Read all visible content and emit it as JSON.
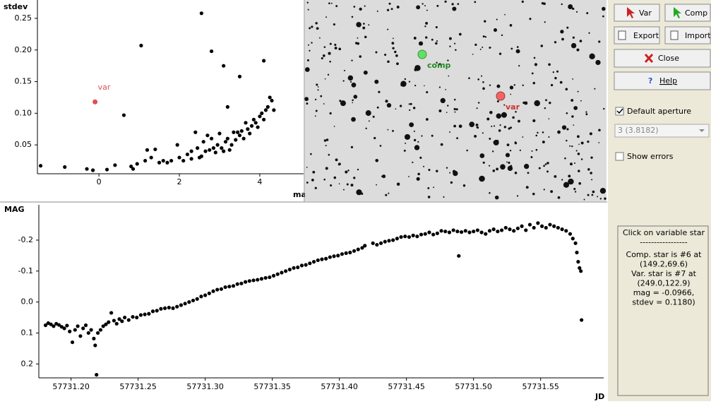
{
  "chart_data": [
    {
      "type": "scatter",
      "y_label": "stdev",
      "x_label": "mag",
      "xlim": [
        -1.53,
        5.09
      ],
      "ylim": [
        0.0044,
        0.279
      ],
      "xticks": [
        0,
        2,
        4
      ],
      "yticks": [
        0.05,
        {
          "value": 0.1,
          "label": "0.10"
        },
        0.15,
        {
          "value": 0.2,
          "label": "0.20"
        },
        0.25
      ],
      "series": [
        {
          "color": "#000000",
          "x": [
            2.55,
            1.05,
            2.8,
            3.1,
            3.5,
            4.1,
            0.62,
            3.2,
            -1.45,
            -0.85,
            -0.3,
            -0.15,
            0.2,
            0.4,
            0.8,
            0.85,
            0.95,
            1.15,
            1.2,
            1.4,
            1.3,
            1.5,
            1.6,
            1.7,
            1.8,
            1.95,
            2.0,
            2.1,
            2.2,
            2.3,
            2.3,
            2.4,
            2.45,
            2.5,
            2.6,
            2.65,
            2.7,
            2.75,
            2.8,
            2.85,
            2.9,
            2.95,
            3.0,
            3.05,
            3.1,
            3.15,
            3.2,
            3.3,
            3.35,
            3.4,
            3.5,
            3.55,
            3.6,
            3.7,
            3.75,
            3.8,
            3.85,
            3.9,
            4.0,
            4.05,
            4.1,
            4.15,
            4.2,
            4.25,
            4.3,
            4.35,
            3.95,
            3.65,
            3.45,
            3.25,
            2.55
          ],
          "values": [
            0.258,
            0.207,
            0.198,
            0.175,
            0.158,
            0.183,
            0.097,
            0.11,
            0.017,
            0.015,
            0.012,
            0.01,
            0.011,
            0.018,
            0.016,
            0.012,
            0.02,
            0.025,
            0.042,
            0.043,
            0.03,
            0.022,
            0.025,
            0.022,
            0.025,
            0.05,
            0.03,
            0.025,
            0.035,
            0.04,
            0.028,
            0.07,
            0.045,
            0.03,
            0.055,
            0.04,
            0.065,
            0.042,
            0.06,
            0.045,
            0.038,
            0.05,
            0.068,
            0.045,
            0.04,
            0.055,
            0.06,
            0.05,
            0.07,
            0.058,
            0.065,
            0.072,
            0.06,
            0.075,
            0.068,
            0.08,
            0.09,
            0.085,
            0.095,
            0.1,
            0.09,
            0.105,
            0.11,
            0.125,
            0.12,
            0.105,
            0.078,
            0.085,
            0.07,
            0.042,
            0.032
          ]
        },
        {
          "name": "var",
          "color": "#e05050",
          "x": [
            -0.0966
          ],
          "values": [
            0.118
          ]
        }
      ]
    },
    {
      "type": "scatter",
      "y_label": "MAG",
      "x_label": "JD",
      "xlim": [
        57731.176,
        57731.597
      ],
      "ylim": [
        0.245,
        -0.314
      ],
      "xticks": [
        {
          "value": 57731.2,
          "label": "57731.20"
        },
        {
          "value": 57731.25,
          "label": "57731.25"
        },
        {
          "value": 57731.3,
          "label": "57731.30"
        },
        {
          "value": 57731.35,
          "label": "57731.35"
        },
        {
          "value": 57731.4,
          "label": "57731.40"
        },
        {
          "value": 57731.45,
          "label": "57731.45"
        },
        {
          "value": 57731.5,
          "label": "57731.50"
        },
        {
          "value": 57731.55,
          "label": "57731.55"
        }
      ],
      "yticks": [
        -0.2,
        -0.1,
        {
          "value": 0,
          "label": "0.0"
        },
        0.1,
        0.2
      ],
      "series": [
        {
          "color": "#000000",
          "x": [
            57731.181,
            57731.183,
            57731.185,
            57731.187,
            57731.189,
            57731.191,
            57731.193,
            57731.195,
            57731.197,
            57731.199,
            57731.201,
            57731.203,
            57731.205,
            57731.207,
            57731.209,
            57731.211,
            57731.213,
            57731.215,
            57731.217,
            57731.218,
            57731.219,
            57731.22,
            57731.222,
            57731.224,
            57731.226,
            57731.228,
            57731.23,
            57731.232,
            57731.234,
            57731.236,
            57731.238,
            57731.24,
            57731.243,
            57731.246,
            57731.249,
            57731.252,
            57731.255,
            57731.258,
            57731.261,
            57731.264,
            57731.267,
            57731.27,
            57731.273,
            57731.276,
            57731.279,
            57731.282,
            57731.285,
            57731.288,
            57731.291,
            57731.294,
            57731.297,
            57731.3,
            57731.303,
            57731.306,
            57731.309,
            57731.312,
            57731.315,
            57731.318,
            57731.321,
            57731.324,
            57731.327,
            57731.33,
            57731.333,
            57731.336,
            57731.339,
            57731.342,
            57731.345,
            57731.348,
            57731.351,
            57731.354,
            57731.357,
            57731.36,
            57731.363,
            57731.366,
            57731.369,
            57731.372,
            57731.375,
            57731.378,
            57731.381,
            57731.384,
            57731.387,
            57731.39,
            57731.393,
            57731.396,
            57731.399,
            57731.402,
            57731.405,
            57731.408,
            57731.411,
            57731.414,
            57731.417,
            57731.419,
            57731.425,
            57731.428,
            57731.431,
            57731.434,
            57731.437,
            57731.44,
            57731.443,
            57731.446,
            57731.449,
            57731.452,
            57731.455,
            57731.458,
            57731.461,
            57731.464,
            57731.467,
            57731.47,
            57731.473,
            57731.476,
            57731.479,
            57731.482,
            57731.485,
            57731.488,
            57731.489,
            57731.491,
            57731.494,
            57731.497,
            57731.5,
            57731.503,
            57731.506,
            57731.509,
            57731.512,
            57731.515,
            57731.518,
            57731.521,
            57731.524,
            57731.527,
            57731.53,
            57731.533,
            57731.536,
            57731.539,
            57731.542,
            57731.545,
            57731.548,
            57731.551,
            57731.554,
            57731.557,
            57731.56,
            57731.563,
            57731.566,
            57731.569,
            57731.572,
            57731.574,
            57731.576,
            57731.577,
            57731.578,
            57731.579,
            57731.58,
            57731.5805
          ],
          "values": [
            0.075,
            0.068,
            0.072,
            0.078,
            0.07,
            0.074,
            0.08,
            0.085,
            0.076,
            0.095,
            0.13,
            0.09,
            0.078,
            0.11,
            0.085,
            0.075,
            0.1,
            0.09,
            0.118,
            0.14,
            0.235,
            0.1,
            0.09,
            0.078,
            0.072,
            0.065,
            0.035,
            0.06,
            0.07,
            0.055,
            0.062,
            0.05,
            0.058,
            0.048,
            0.05,
            0.042,
            0.04,
            0.038,
            0.03,
            0.028,
            0.022,
            0.02,
            0.018,
            0.02,
            0.015,
            0.01,
            0.005,
            0,
            -0.005,
            -0.01,
            -0.018,
            -0.022,
            -0.028,
            -0.035,
            -0.04,
            -0.042,
            -0.048,
            -0.05,
            -0.052,
            -0.058,
            -0.06,
            -0.065,
            -0.068,
            -0.07,
            -0.072,
            -0.075,
            -0.078,
            -0.08,
            -0.085,
            -0.09,
            -0.095,
            -0.1,
            -0.105,
            -0.11,
            -0.112,
            -0.118,
            -0.12,
            -0.125,
            -0.13,
            -0.135,
            -0.138,
            -0.14,
            -0.145,
            -0.148,
            -0.15,
            -0.155,
            -0.158,
            -0.16,
            -0.165,
            -0.17,
            -0.175,
            -0.182,
            -0.19,
            -0.185,
            -0.19,
            -0.195,
            -0.198,
            -0.2,
            -0.205,
            -0.21,
            -0.212,
            -0.21,
            -0.215,
            -0.212,
            -0.218,
            -0.22,
            -0.225,
            -0.218,
            -0.222,
            -0.23,
            -0.228,
            -0.225,
            -0.232,
            -0.228,
            -0.149,
            -0.226,
            -0.23,
            -0.225,
            -0.228,
            -0.232,
            -0.225,
            -0.22,
            -0.23,
            -0.235,
            -0.228,
            -0.232,
            -0.24,
            -0.235,
            -0.23,
            -0.238,
            -0.245,
            -0.232,
            -0.25,
            -0.24,
            -0.255,
            -0.245,
            -0.24,
            -0.25,
            -0.245,
            -0.24,
            -0.235,
            -0.23,
            -0.22,
            -0.205,
            -0.19,
            -0.16,
            -0.13,
            -0.11,
            -0.1,
            0.058
          ]
        }
      ]
    }
  ],
  "image": {
    "comp_label": "comp",
    "var_label": "var"
  },
  "panel": {
    "buttons": [
      "Var",
      "Comp",
      "Export",
      "Import",
      "Close",
      "Help"
    ],
    "default_aperture": "Default aperture",
    "aperture_value": "3 (3.8182)",
    "show_errors": "Show errors",
    "info": [
      "Click on variable star",
      "-----------------",
      "Comp. star is #6 at",
      "(149.2,69.6)",
      "Var. star is #7 at",
      "(249.0,122.9)",
      "mag = -0.0966,",
      "stdev = 0.1180)"
    ]
  }
}
